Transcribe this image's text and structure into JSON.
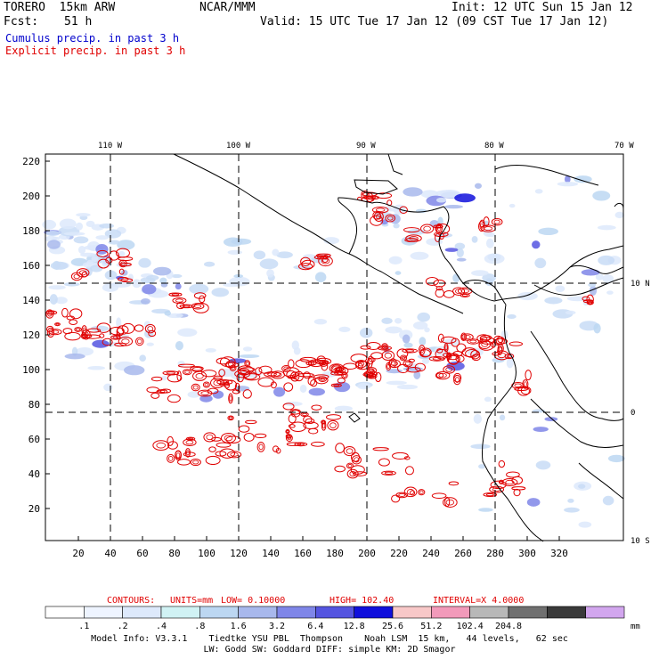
{
  "header": {
    "model": "TORERO  15km ARW",
    "org": "NCAR/MMM",
    "init": "Init: 12 UTC Sun 15 Jan 12",
    "fcst_label": "Fcst:",
    "fcst_value": "51 h",
    "valid": "Valid: 15 UTC Tue 17 Jan 12 (09 CST Tue 17 Jan 12)",
    "cumulus": "Cumulus precip. in past 3 h",
    "explicit": "Explicit precip. in past 3 h"
  },
  "colors": {
    "cumulus_text": "#0000cc",
    "explicit_text": "#ff0000",
    "contour": "#e00000",
    "coast": "#000000"
  },
  "map": {
    "top_lon_labels": [
      "110 W",
      "100 W",
      "90 W",
      "80 W",
      "70 W"
    ],
    "right_lat_labels": [
      "10 N",
      "0",
      "10 S"
    ],
    "left_ticks": [
      220,
      200,
      180,
      160,
      140,
      120,
      100,
      80,
      60,
      40,
      20
    ],
    "bottom_ticks": [
      20,
      40,
      60,
      80,
      100,
      120,
      140,
      160,
      180,
      200,
      220,
      240,
      260,
      280,
      300,
      320
    ]
  },
  "contours_line": {
    "prefix": "CONTOURS:",
    "units": "UNITS=mm",
    "low": "LOW= 0.10000",
    "high": "HIGH= 102.40",
    "interval": "INTERVAL=X  4.0000"
  },
  "colorbar": {
    "labels": [
      ".1",
      ".2",
      ".4",
      ".8",
      "1.6",
      "3.2",
      "6.4",
      "12.8",
      "25.6",
      "51.2",
      "102.4",
      "204.8"
    ],
    "unit": "mm",
    "colors": [
      "#ffffff",
      "#eef4ff",
      "#dde9fb",
      "#d0f2f4",
      "#bcd7f2",
      "#a8b8ec",
      "#7f86e8",
      "#5555e0",
      "#1010dc",
      "#f8c8c8",
      "#f29aba",
      "#b8b8b8",
      "#707070",
      "#3a3a3a",
      "#d2a6ee"
    ]
  },
  "model_info": {
    "line1": "Model Info: V3.3.1    Tiedtke YSU PBL  Thompson    Noah LSM  15 km,   44 levels,   62 sec",
    "line2": "LW: Godd SW: Goddard DIFF: simple KM: 2D Smagor"
  }
}
